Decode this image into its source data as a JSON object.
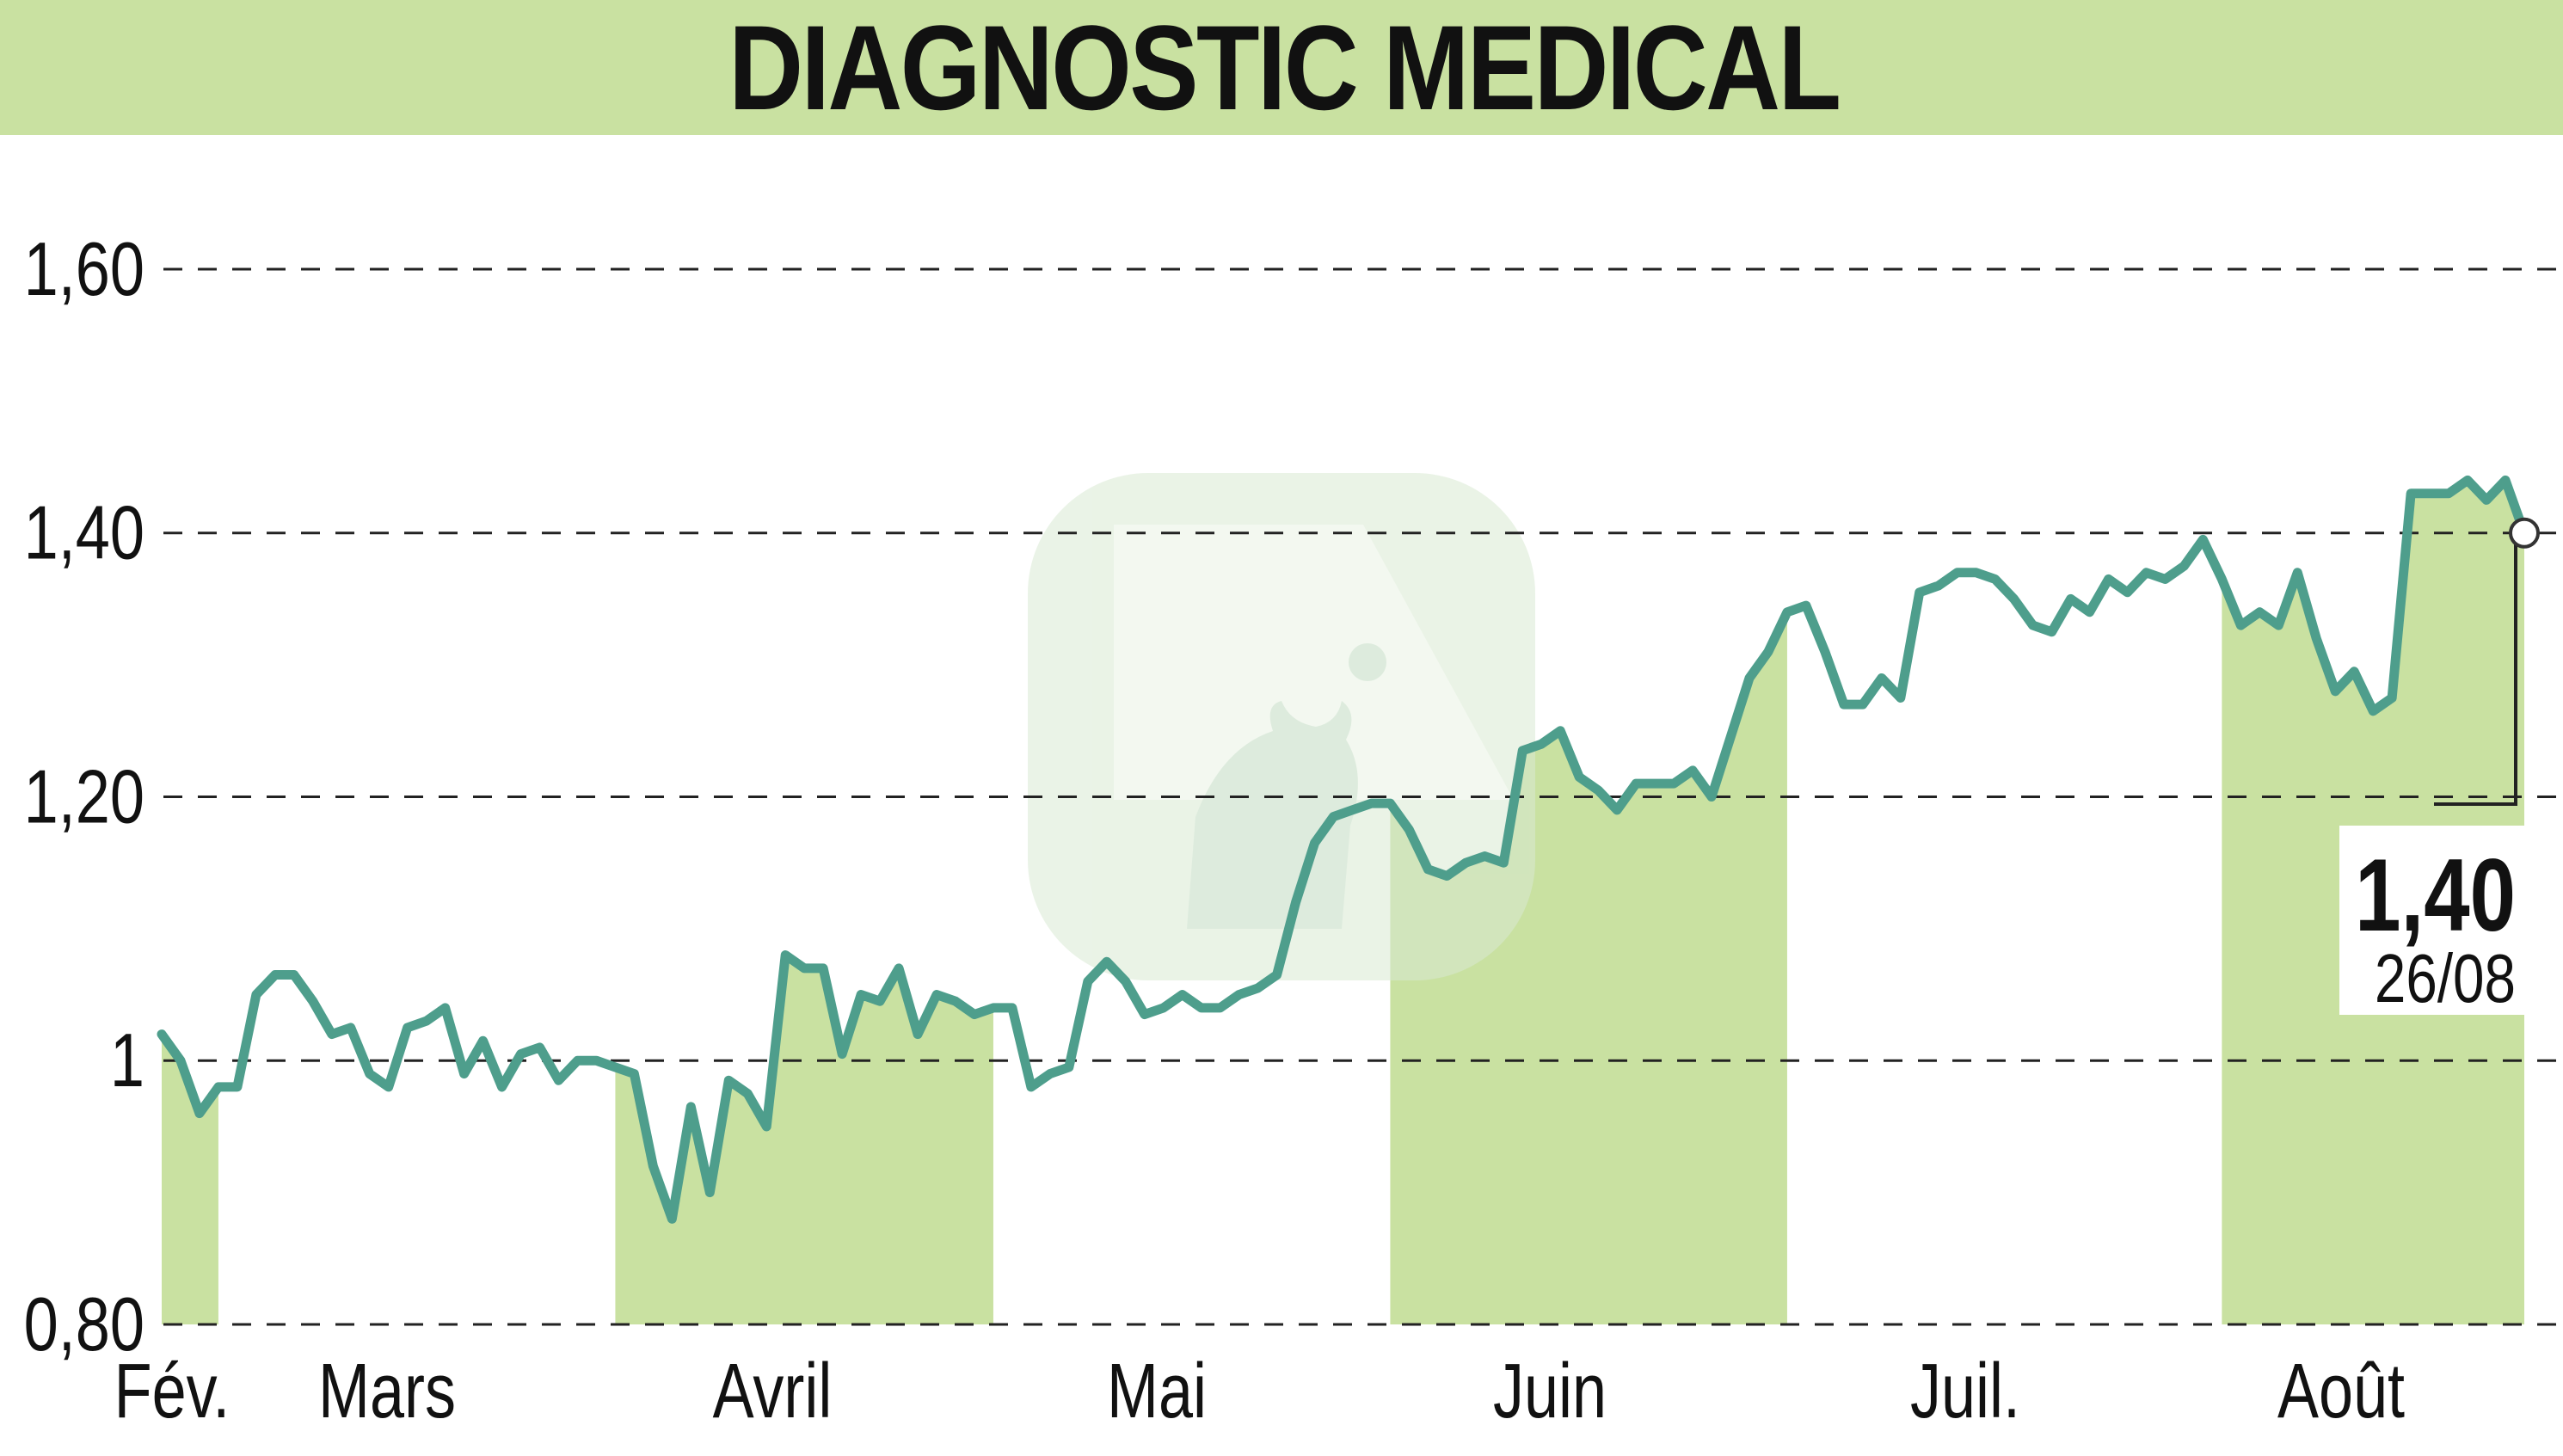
{
  "title": "DIAGNOSTIC MEDICAL",
  "colors": {
    "band": "#c9e1a1",
    "line": "#4e9e8c",
    "grid": "#222222",
    "text": "#111111",
    "logo": "#d9ead3"
  },
  "chart_data": {
    "type": "line",
    "title": "DIAGNOSTIC MEDICAL",
    "xlabel": "",
    "ylabel": "",
    "ylim": [
      0.8,
      1.62
    ],
    "yticks": [
      {
        "value": 1.6,
        "label": "1,60"
      },
      {
        "value": 1.4,
        "label": "1,40"
      },
      {
        "value": 1.2,
        "label": "1,20"
      },
      {
        "value": 1.0,
        "label": "1"
      },
      {
        "value": 0.8,
        "label": "0,80"
      }
    ],
    "grid": true,
    "x_index_range": [
      0,
      125
    ],
    "months": [
      {
        "label": "Fév.",
        "start": 0,
        "end": 3
      },
      {
        "label": "Mars",
        "start": 3,
        "end": 24
      },
      {
        "label": "Avril",
        "start": 24,
        "end": 44
      },
      {
        "label": "Mai",
        "start": 44,
        "end": 65
      },
      {
        "label": "Juin",
        "start": 65,
        "end": 86
      },
      {
        "label": "Juil.",
        "start": 86,
        "end": 109
      },
      {
        "label": "Août",
        "start": 109,
        "end": 125
      }
    ],
    "shaded_months": [
      "Fév.",
      "Avril",
      "Juin",
      "Août"
    ],
    "series": [
      {
        "values": [
          1.02,
          1.0,
          0.96,
          0.98,
          0.98,
          1.05,
          1.065,
          1.065,
          1.045,
          1.02,
          1.025,
          0.99,
          0.98,
          1.025,
          1.03,
          1.04,
          0.99,
          1.015,
          0.98,
          1.005,
          1.01,
          0.985,
          1.0,
          1.0,
          0.995,
          0.99,
          0.92,
          0.88,
          0.965,
          0.9,
          0.985,
          0.975,
          0.95,
          1.08,
          1.07,
          1.07,
          1.005,
          1.05,
          1.045,
          1.07,
          1.02,
          1.05,
          1.045,
          1.035,
          1.04,
          1.04,
          0.98,
          0.99,
          0.995,
          1.06,
          1.075,
          1.06,
          1.035,
          1.04,
          1.05,
          1.04,
          1.04,
          1.05,
          1.055,
          1.065,
          1.12,
          1.165,
          1.185,
          1.19,
          1.195,
          1.195,
          1.175,
          1.145,
          1.14,
          1.15,
          1.155,
          1.15,
          1.235,
          1.24,
          1.25,
          1.215,
          1.205,
          1.19,
          1.21,
          1.21,
          1.21,
          1.22,
          1.2,
          1.245,
          1.29,
          1.31,
          1.34,
          1.345,
          1.31,
          1.27,
          1.27,
          1.29,
          1.275,
          1.355,
          1.36,
          1.37,
          1.37,
          1.365,
          1.35,
          1.33,
          1.325,
          1.35,
          1.34,
          1.365,
          1.355,
          1.37,
          1.365,
          1.375,
          1.395,
          1.365,
          1.33,
          1.34,
          1.33,
          1.37,
          1.32,
          1.28,
          1.295,
          1.265,
          1.275,
          1.43,
          1.43,
          1.43,
          1.44,
          1.425,
          1.44,
          1.4
        ]
      }
    ],
    "last": {
      "value": "1,40",
      "date": "26/08"
    }
  }
}
